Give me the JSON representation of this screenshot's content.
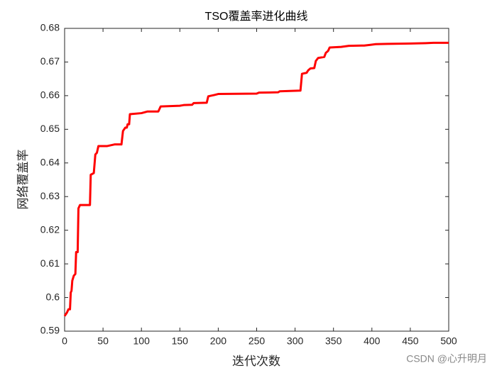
{
  "chart_data": {
    "type": "line",
    "title": "TSO覆盖率进化曲线",
    "x_label": "迭代次数",
    "y_label": "网络覆盖率",
    "watermark": "CSDN @心升明月",
    "x": [
      0,
      3,
      5,
      7,
      8,
      9,
      10,
      12,
      14,
      15,
      17,
      18,
      19,
      20,
      33,
      34,
      38,
      40,
      42,
      44,
      55,
      65,
      74,
      76,
      79,
      81,
      82,
      84,
      85,
      100,
      108,
      122,
      125,
      150,
      155,
      166,
      168,
      185,
      187,
      195,
      200,
      250,
      253,
      278,
      280,
      307,
      309,
      315,
      317,
      320,
      325,
      327,
      330,
      338,
      340,
      343,
      345,
      360,
      370,
      390,
      398,
      405,
      420,
      450,
      470,
      480,
      500
    ],
    "series": [
      {
        "name": "TSO",
        "color": "#ff0000",
        "values": [
          0.5945,
          0.5955,
          0.5965,
          0.5965,
          0.6015,
          0.602,
          0.605,
          0.6065,
          0.607,
          0.6135,
          0.6135,
          0.6265,
          0.627,
          0.6275,
          0.6275,
          0.6365,
          0.637,
          0.6425,
          0.643,
          0.645,
          0.645,
          0.6455,
          0.6455,
          0.6495,
          0.6505,
          0.6505,
          0.6515,
          0.6515,
          0.6545,
          0.6548,
          0.6553,
          0.6553,
          0.6568,
          0.657,
          0.6572,
          0.6573,
          0.6578,
          0.6579,
          0.6598,
          0.6602,
          0.6605,
          0.6606,
          0.6609,
          0.661,
          0.6613,
          0.6615,
          0.6665,
          0.6668,
          0.6675,
          0.6681,
          0.6682,
          0.6703,
          0.6712,
          0.6715,
          0.6727,
          0.6733,
          0.6743,
          0.6745,
          0.6748,
          0.6749,
          0.6751,
          0.6753,
          0.6754,
          0.6755,
          0.6756,
          0.6757,
          0.6757
        ]
      }
    ],
    "xlim": [
      0,
      500
    ],
    "xticks": [
      0,
      50,
      100,
      150,
      200,
      250,
      300,
      350,
      400,
      450,
      500
    ],
    "ylim": [
      0.59,
      0.68
    ],
    "yticks": [
      0.59,
      0.6,
      0.61,
      0.62,
      0.63,
      0.64,
      0.65,
      0.66,
      0.67,
      0.68
    ],
    "grid": false
  }
}
